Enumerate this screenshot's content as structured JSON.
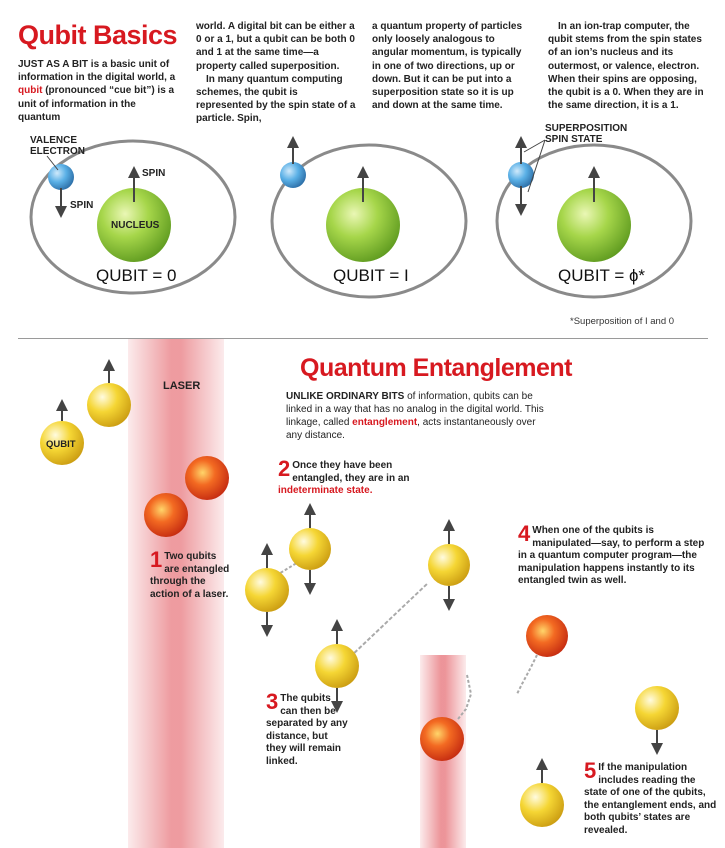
{
  "qubit_basics": {
    "title": "Qubit Basics",
    "col1": {
      "lead": "JUST AS A BIT",
      "text1": " is a basic unit of information in the digital world, a ",
      "qubit_word": "qubit",
      "text2": " (pronounced “cue bit”) is a unit of information in the quantum"
    },
    "col2": {
      "p1": "world. A digital bit can be either a 0 or a 1, but a qubit can be both 0 and 1 at the same time—a property called superposition.",
      "p2": "In many quantum computing schemes, the qubit is represented by the spin state of a particle. Spin,"
    },
    "col3": {
      "p1": "a quantum property of particles only loosely analogous to angular momentum, is typically in one of two directions, up or down. But it can be put into a superposition state so it is up and down at the same time."
    },
    "col4": {
      "p1": "In an ion-trap computer, the qubit stems from the spin states of an ion’s nucleus and its outermost, or valence, electron. When their spins are opposing, the qubit is a 0. When they are in the same direction, it is a 1."
    },
    "diagram_labels": {
      "valence_electron_1": "VALENCE",
      "valence_electron_2": "ELECTRON",
      "spin_top": "SPIN",
      "spin_bottom": "SPIN",
      "nucleus": "NUCLEUS",
      "superposition_1": "SUPERPOSITION",
      "superposition_2": "SPIN STATE"
    },
    "qubit_labels": [
      "QUBIT = 0",
      "QUBIT = I",
      "QUBIT = ɸ*"
    ],
    "footnote": "*Superposition of I and 0"
  },
  "entanglement": {
    "title": "Quantum Entanglement",
    "intro_lead": "UNLIKE ORDINARY BITS",
    "intro_text1": " of information, qubits can be linked in a way that has no analog in the digital world. This linkage, called ",
    "intro_red": "entanglement",
    "intro_text2": ", acts instantaneously over any distance.",
    "laser_label": "LASER",
    "qubit_label": "QUBIT",
    "steps": [
      {
        "num": "1",
        "text": "Two qubits are entangled through the action of a laser."
      },
      {
        "num": "2",
        "text_a": "Once they have been entangled, they are in an ",
        "text_red": "indeterminate state."
      },
      {
        "num": "3",
        "text": "The qubits can then be separated by any distance, but they will remain linked."
      },
      {
        "num": "4",
        "text": "When one of the qubits is manipulated—say, to perform a step in a quantum computer program—the manipulation happens instantly to its entangled twin as well."
      },
      {
        "num": "5",
        "text": "If the manipulation includes reading the state of one of the qubits, the entanglement ends, and both qubits’ states are revealed."
      }
    ]
  },
  "colors": {
    "accent_red": "#d71920",
    "nucleus_green": "#8cc63f",
    "electron_blue": "#4a9fd8",
    "qubit_yellow": "#f3d02a",
    "entangled_orange": "#e8401c",
    "laser_pink": "#e87a80"
  }
}
